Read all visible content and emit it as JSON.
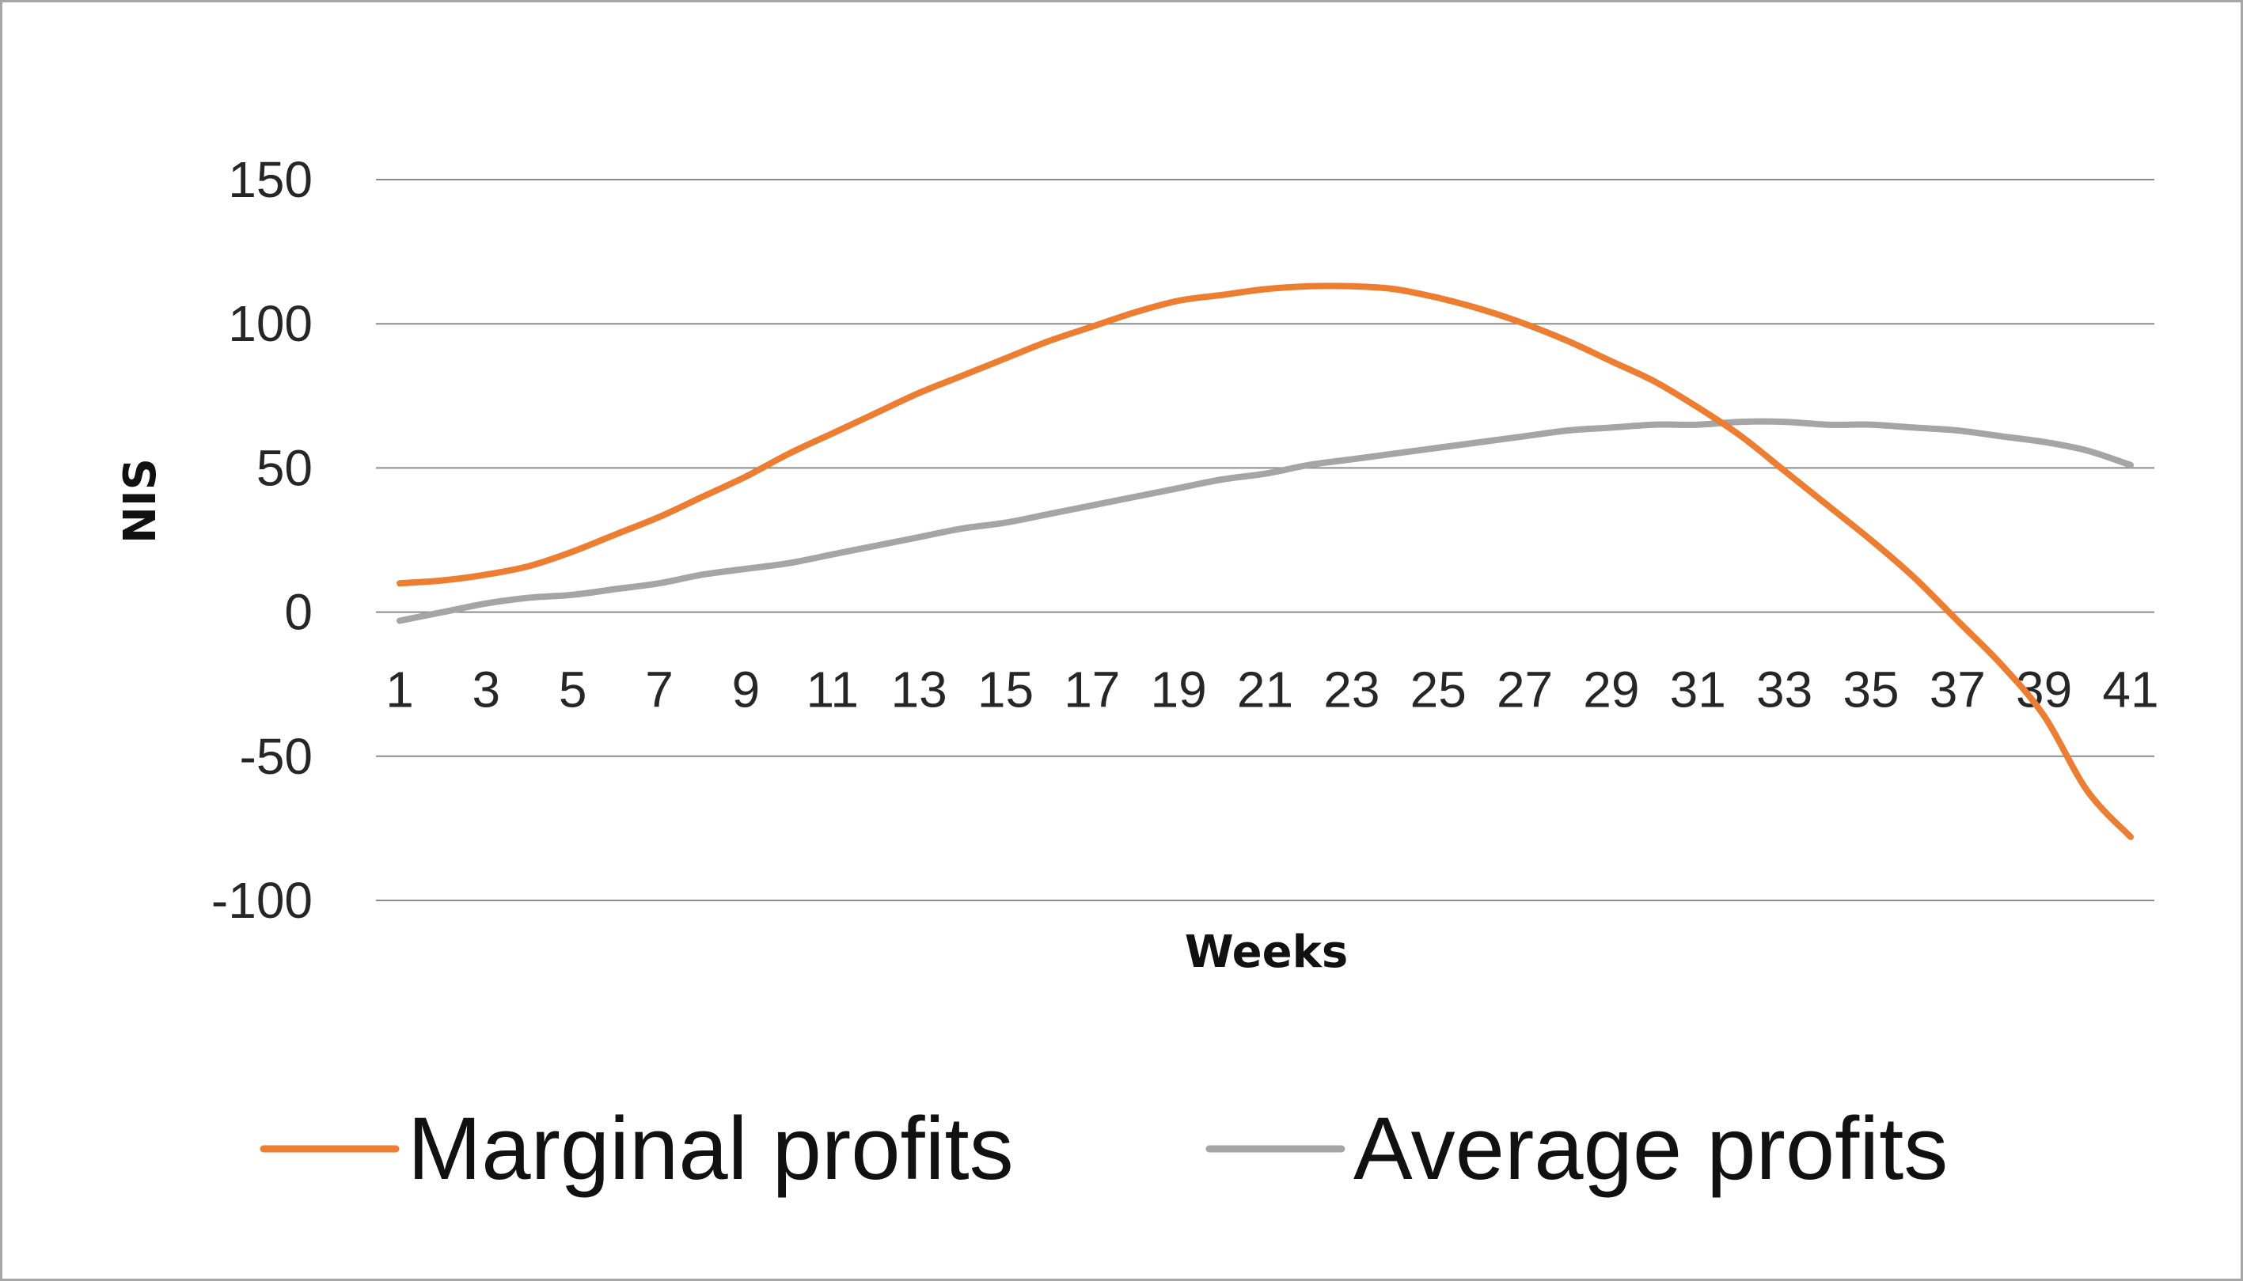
{
  "chart_data": {
    "type": "line",
    "title": "",
    "xlabel": "Weeks",
    "ylabel": "NIS",
    "x": [
      1,
      2,
      3,
      4,
      5,
      6,
      7,
      8,
      9,
      10,
      11,
      12,
      13,
      14,
      15,
      16,
      17,
      18,
      19,
      20,
      21,
      22,
      23,
      24,
      25,
      26,
      27,
      28,
      29,
      30,
      31,
      32,
      33,
      34,
      35,
      36,
      37,
      38,
      39,
      40,
      41
    ],
    "x_tick_labels": [
      "1",
      "3",
      "5",
      "7",
      "9",
      "11",
      "13",
      "15",
      "17",
      "19",
      "21",
      "23",
      "25",
      "27",
      "29",
      "31",
      "33",
      "35",
      "37",
      "39",
      "41"
    ],
    "y_tick_labels": [
      "150",
      "100",
      "50",
      "0",
      "-50",
      "-100"
    ],
    "ylim": [
      -100,
      150
    ],
    "grid": true,
    "legend_position": "bottom",
    "series": [
      {
        "name": "Marginal profits",
        "color": "#ED7D31",
        "values": [
          10,
          11,
          13,
          16,
          21,
          27,
          33,
          40,
          47,
          55,
          62,
          69,
          76,
          82,
          88,
          94,
          99,
          104,
          108,
          110,
          112,
          113,
          113,
          112,
          109,
          105,
          100,
          94,
          87,
          80,
          71,
          61,
          49,
          37,
          25,
          12,
          -3,
          -18,
          -36,
          -62,
          -78
        ]
      },
      {
        "name": "Average profits",
        "color": "#A5A5A5",
        "values": [
          -3,
          0,
          3,
          5,
          6,
          8,
          10,
          13,
          15,
          17,
          20,
          23,
          26,
          29,
          31,
          34,
          37,
          40,
          43,
          46,
          48,
          51,
          53,
          55,
          57,
          59,
          61,
          63,
          64,
          65,
          65,
          66,
          66,
          65,
          65,
          64,
          63,
          61,
          59,
          56,
          51
        ]
      }
    ]
  }
}
